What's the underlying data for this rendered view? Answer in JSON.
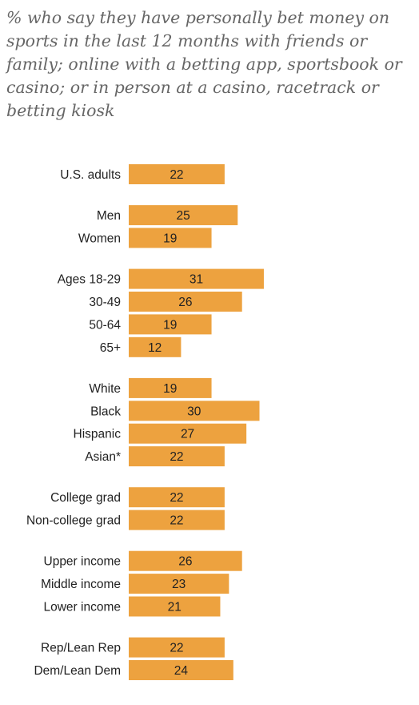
{
  "chart_data": {
    "type": "bar",
    "orientation": "horizontal",
    "subtitle": "% who say they have personally bet money on sports in the last 12 months with friends or family; online with a betting app, sportsbook or casino; or in person at a casino, racetrack or betting kiosk",
    "bar_color": "#EDA23F",
    "groups": [
      {
        "categories": [
          "U.S. adults"
        ],
        "values": [
          22
        ]
      },
      {
        "categories": [
          "Men",
          "Women"
        ],
        "values": [
          25,
          19
        ]
      },
      {
        "categories": [
          "Ages 18-29",
          "30-49",
          "50-64",
          "65+"
        ],
        "values": [
          31,
          26,
          19,
          12
        ]
      },
      {
        "categories": [
          "White",
          "Black",
          "Hispanic",
          "Asian*"
        ],
        "values": [
          19,
          30,
          27,
          22
        ]
      },
      {
        "categories": [
          "College grad",
          "Non-college grad"
        ],
        "values": [
          22,
          22
        ]
      },
      {
        "categories": [
          "Upper income",
          "Middle income",
          "Lower income"
        ],
        "values": [
          26,
          23,
          21
        ]
      },
      {
        "categories": [
          "Rep/Lean Rep",
          "Dem/Lean Dem"
        ],
        "values": [
          22,
          24
        ]
      }
    ]
  }
}
